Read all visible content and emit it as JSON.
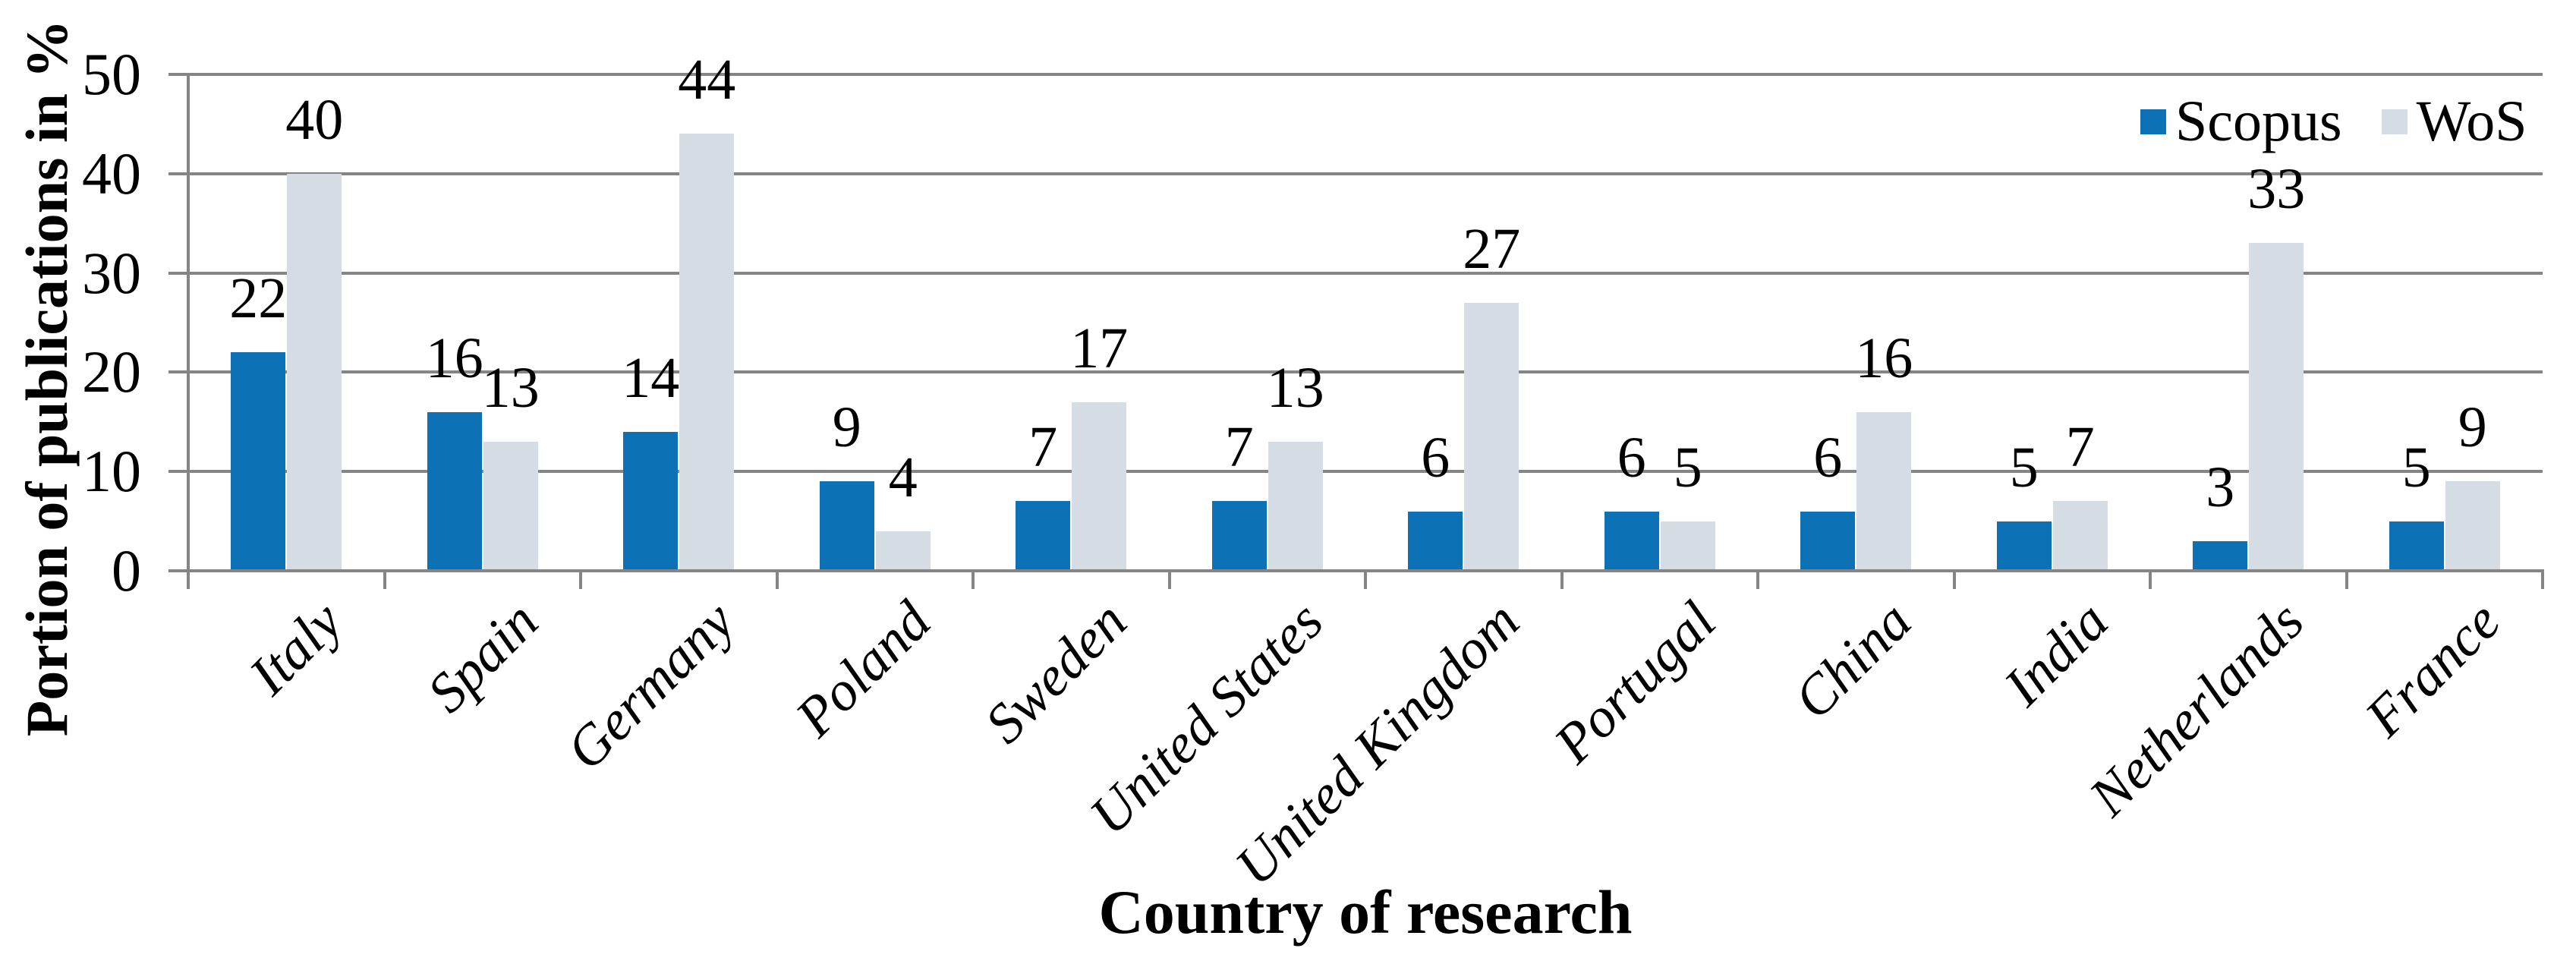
{
  "chart_data": {
    "type": "bar",
    "title": "",
    "xlabel": "Country of research",
    "ylabel": "Portion of publications in %",
    "categories": [
      "Italy",
      "Spain",
      "Germany",
      "Poland",
      "Sweden",
      "United States",
      "United Kingdom",
      "Portugal",
      "China",
      "India",
      "Netherlands",
      "France"
    ],
    "series": [
      {
        "name": "Scopus",
        "color": "#0C72B5",
        "values": [
          22,
          16,
          14,
          9,
          7,
          7,
          6,
          6,
          6,
          5,
          3,
          5
        ]
      },
      {
        "name": "WoS",
        "color": "#D6DCE4",
        "values": [
          40,
          13,
          44,
          4,
          17,
          13,
          27,
          5,
          16,
          7,
          33,
          9
        ]
      }
    ],
    "ylim": [
      0,
      50
    ],
    "yticks": [
      0,
      10,
      20,
      30,
      40,
      50
    ],
    "grid": true,
    "legend_position": "top-right",
    "colors": {
      "gridline": "#858585",
      "axis": "#858585",
      "text": "#000000"
    }
  }
}
